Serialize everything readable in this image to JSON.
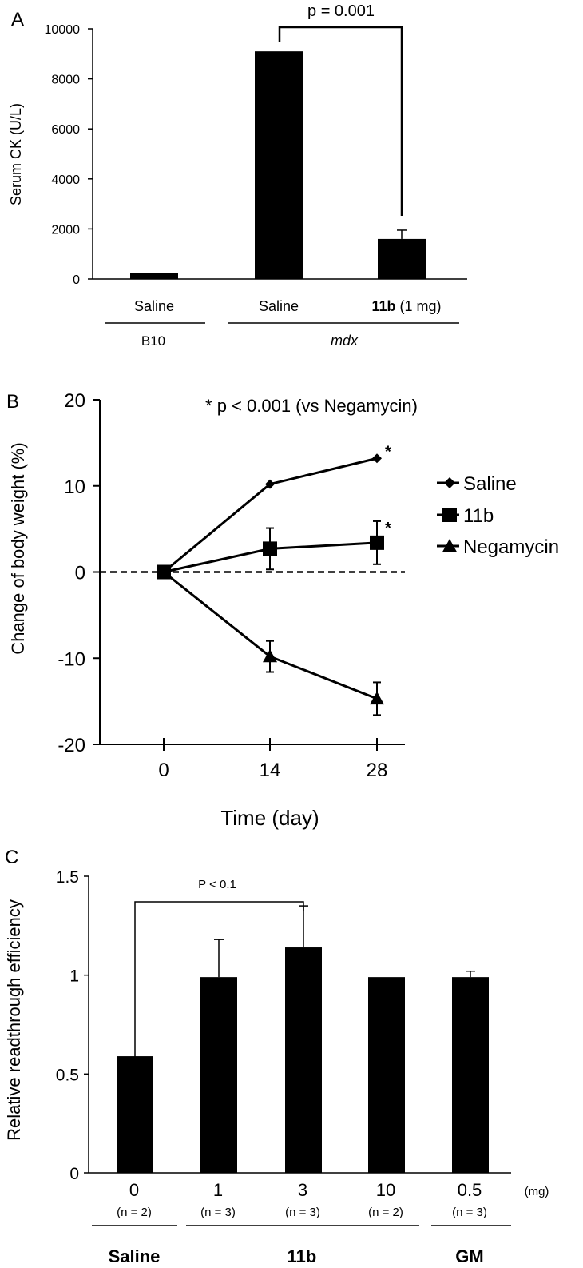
{
  "chart_data": [
    {
      "type": "bar",
      "panel_label": "A",
      "ylabel": "Serum CK (U/L)",
      "xlabel": "",
      "ylim": [
        0,
        10000
      ],
      "yticks": [
        0,
        2000,
        4000,
        6000,
        8000,
        10000
      ],
      "categories": [
        "Saline",
        "Saline",
        "11b (1 mg)"
      ],
      "category_parts": [
        {
          "bold": "",
          "rest": "Saline"
        },
        {
          "bold": "",
          "rest": "Saline"
        },
        {
          "bold": "11b",
          "rest": " (1 mg)"
        }
      ],
      "values": [
        250,
        9100,
        1600
      ],
      "errors": [
        0,
        0,
        350
      ],
      "groups": [
        {
          "label": "B10",
          "italic": false
        },
        {
          "label": "mdx",
          "italic": true
        }
      ],
      "annotation": "p = 0.001",
      "grid": false,
      "color": "#000000"
    },
    {
      "type": "line",
      "panel_label": "B",
      "xlabel": "Time (day)",
      "ylabel": "Change of body weight (%)",
      "x": [
        0,
        14,
        28
      ],
      "ylim": [
        -20,
        20
      ],
      "yticks": [
        -20,
        -10,
        0,
        10,
        20
      ],
      "series": [
        {
          "name": "Saline",
          "marker": "diamond",
          "values": [
            0,
            10.2,
            13.2
          ],
          "errors": [
            0,
            0,
            0
          ],
          "star": [
            false,
            false,
            true
          ]
        },
        {
          "name": "11b",
          "marker": "square",
          "values": [
            0,
            2.7,
            3.4
          ],
          "errors": [
            0,
            2.4,
            2.5
          ],
          "star": [
            false,
            false,
            true
          ]
        },
        {
          "name": "Negamycin",
          "marker": "triangle",
          "values": [
            0,
            -9.8,
            -14.7
          ],
          "errors": [
            0,
            1.8,
            1.9
          ],
          "star": [
            false,
            false,
            false
          ]
        }
      ],
      "annotation": "* p < 0.001 (vs Negamycin)",
      "star_symbol": "*",
      "legend": "right",
      "grid": false,
      "zero_line": "dashed"
    },
    {
      "type": "bar",
      "panel_label": "C",
      "ylabel": "Relative readthrough efficiency",
      "xlabel": "",
      "ylim": [
        0,
        1.5
      ],
      "yticks": [
        0,
        0.5,
        1,
        1.5
      ],
      "categories": [
        "0",
        "1",
        "3",
        "10",
        "0.5"
      ],
      "n_labels": [
        "(n = 2)",
        "(n = 3)",
        "(n = 3)",
        "(n = 2)",
        "(n = 3)"
      ],
      "unit": "(mg)",
      "values": [
        0.59,
        0.99,
        1.14,
        0.99,
        0.99
      ],
      "errors": [
        0,
        0.19,
        0.21,
        0,
        0.03
      ],
      "groups": [
        {
          "label": "Saline"
        },
        {
          "label": "11b"
        },
        {
          "label": "GM"
        }
      ],
      "annotation": "P < 0.1",
      "grid": false,
      "color": "#000000"
    }
  ]
}
